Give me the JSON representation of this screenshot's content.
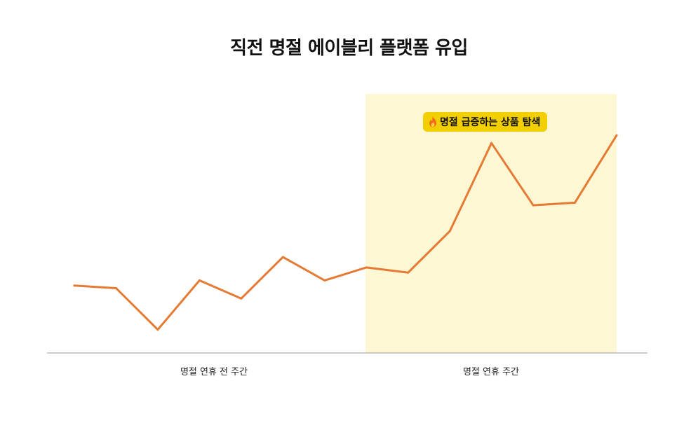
{
  "title": "직전 명절 에이블리 플랫폼 유입",
  "highlight": {
    "badge_icon": "fire-icon",
    "badge_label": "명절 급증하는 상품 탐색",
    "badge_color": "#f2cf00",
    "region_color": "#fdf7d3"
  },
  "chart_data": {
    "type": "line",
    "title": "직전 명절 에이블리 플랫폼 유입",
    "xlabel": "",
    "ylabel": "",
    "x": [
      1,
      2,
      3,
      4,
      5,
      6,
      7,
      8,
      9,
      10,
      11,
      12,
      13,
      14
    ],
    "series": [
      {
        "values": [
          26,
          25,
          9,
          28,
          21,
          37,
          28,
          33,
          31,
          47,
          81,
          57,
          58,
          84
        ],
        "color": "#e47a33"
      }
    ],
    "ylim": [
      0,
      100
    ],
    "grid": false,
    "y_axis_ticks": false,
    "period_labels": [
      "명절 연휴 전 주간",
      "명절 연휴 주간"
    ],
    "highlighted_period": "명절 연휴 주간"
  }
}
